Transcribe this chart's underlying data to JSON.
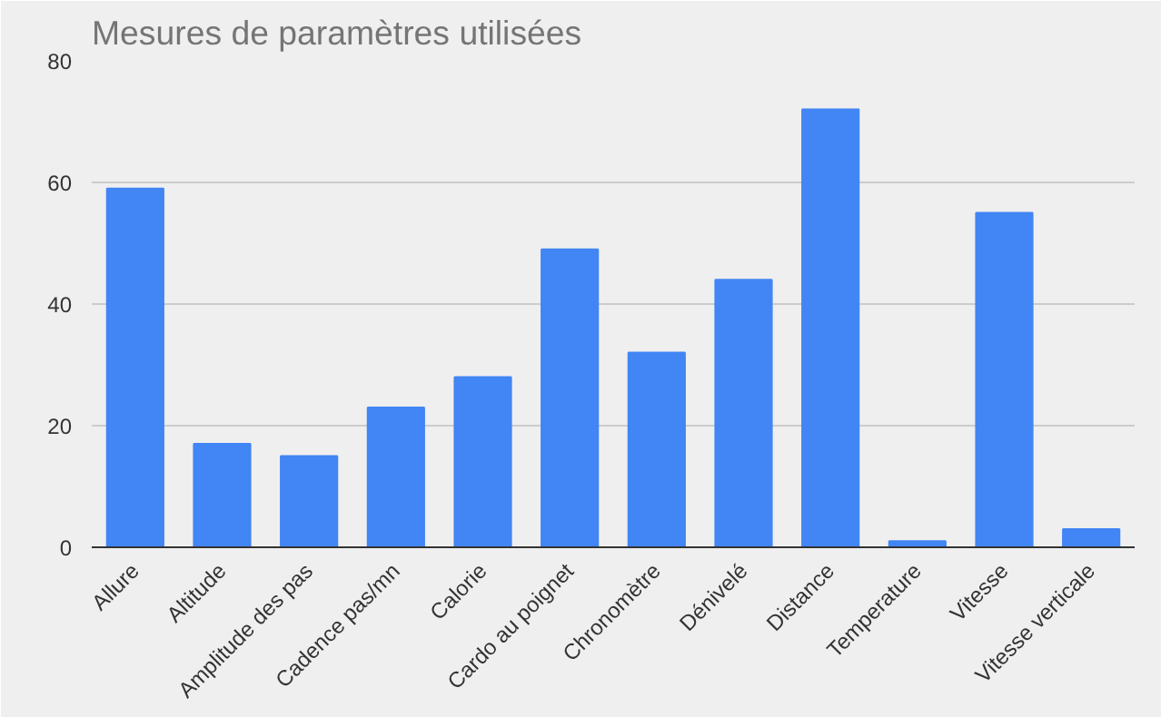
{
  "chart_data": {
    "type": "bar",
    "title": "Mesures de paramètres utilisées",
    "categories": [
      "Allure",
      "Altitude",
      "Amplitude des pas",
      "Cadence pas/mn",
      "Calorie",
      "Cardo au poignet",
      "Chronomètre",
      "Dénivelé",
      "Distance",
      "Temperature",
      "Vitesse",
      "Vitesse verticale"
    ],
    "values": [
      59,
      17,
      15,
      23,
      28,
      49,
      32,
      44,
      72,
      1,
      55,
      3
    ],
    "color": "#4285f4",
    "ylim": [
      0,
      80
    ],
    "yticks": [
      0,
      20,
      40,
      60,
      80
    ],
    "grid": "y"
  }
}
